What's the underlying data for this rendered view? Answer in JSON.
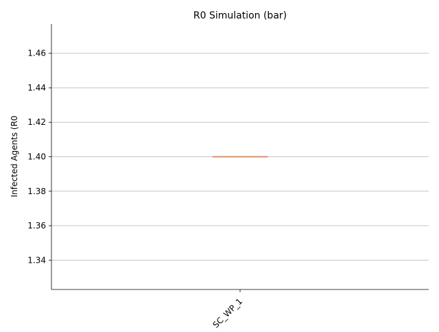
{
  "chart_data": {
    "type": "box",
    "title": "R0 Simulation (bar)",
    "xlabel": "",
    "ylabel": "Infected Agents (R0",
    "categories": [
      "SC_WP_1"
    ],
    "series": [
      {
        "values": [
          {
            "min": 1.4,
            "q1": 1.4,
            "median": 1.4,
            "q3": 1.4,
            "max": 1.4
          }
        ]
      }
    ],
    "ylim": [
      1.323,
      1.477
    ],
    "yticks": [
      1.34,
      1.36,
      1.38,
      1.4,
      1.42,
      1.44,
      1.46
    ],
    "grid": {
      "y": true,
      "x": false
    },
    "colors": {
      "median": "#dd8452",
      "box": "#4c4c4c",
      "grid": "#b0b0b0",
      "axis": "#000000"
    }
  }
}
